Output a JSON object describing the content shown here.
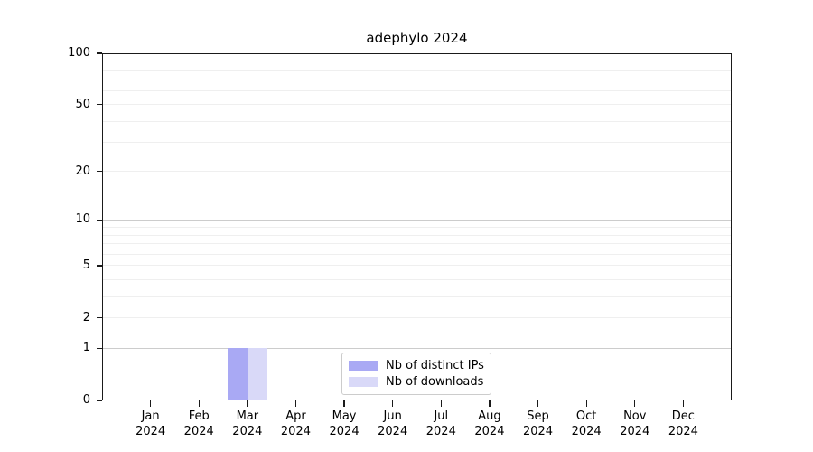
{
  "chart_data": {
    "type": "bar",
    "title": "adephylo 2024",
    "categories": [
      "Jan",
      "Feb",
      "Mar",
      "Apr",
      "May",
      "Jun",
      "Jul",
      "Aug",
      "Sep",
      "Oct",
      "Nov",
      "Dec"
    ],
    "category_year": "2024",
    "series": [
      {
        "name": "Nb of distinct IPs",
        "color": "#a9a9f4",
        "values": [
          0,
          0,
          1,
          0,
          0,
          0,
          0,
          0,
          0,
          0,
          0,
          0
        ]
      },
      {
        "name": "Nb of downloads",
        "color": "#d9d9f8",
        "values": [
          0,
          0,
          1,
          0,
          0,
          0,
          0,
          0,
          0,
          0,
          0,
          0
        ]
      }
    ],
    "xlabel": "",
    "ylabel": "",
    "yscale": "log1p",
    "ylim": [
      0,
      100
    ],
    "yticks": [
      0,
      1,
      2,
      5,
      10,
      20,
      50,
      100
    ],
    "gridlines_major": [
      1,
      10,
      100
    ],
    "gridlines_minor": [
      2,
      3,
      4,
      5,
      6,
      7,
      8,
      9,
      20,
      30,
      40,
      50,
      60,
      70,
      80,
      90
    ],
    "grid": "horizontal only",
    "legend_position": "lower center",
    "colors": {
      "grid_major": "#cccccc",
      "grid_minor": "#efefef",
      "spine": "#1a1a1a",
      "background": "#ffffff",
      "text": "#000000"
    }
  }
}
